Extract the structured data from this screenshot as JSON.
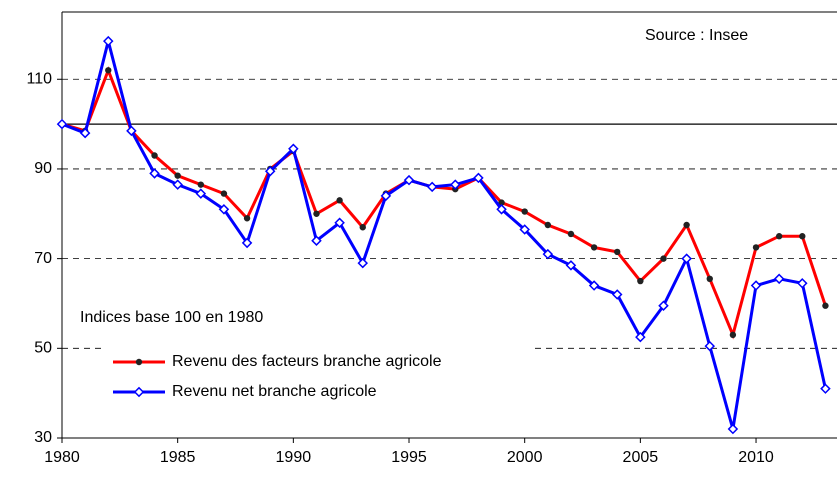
{
  "chart_data": {
    "type": "line",
    "annotations": [
      "Source : Insee",
      "Indices base 100 en 1980"
    ],
    "x": [
      1980,
      1981,
      1982,
      1983,
      1984,
      1985,
      1986,
      1987,
      1988,
      1989,
      1990,
      1991,
      1992,
      1993,
      1994,
      1995,
      1996,
      1997,
      1998,
      1999,
      2000,
      2001,
      2002,
      2003,
      2004,
      2005,
      2006,
      2007,
      2008,
      2009,
      2010,
      2011,
      2012,
      2013
    ],
    "series": [
      {
        "name": "Revenu des facteurs branche agricole",
        "color": "#ff0000",
        "marker": "circle",
        "values": [
          100,
          98.5,
          112,
          98.5,
          93,
          88.5,
          86.5,
          84.5,
          79,
          90,
          94,
          80,
          83,
          77,
          84.5,
          87.5,
          86,
          85.5,
          88,
          82.5,
          80.5,
          77.5,
          75.5,
          72.5,
          71.5,
          65,
          70,
          77.5,
          65.5,
          53,
          72.5,
          75,
          75,
          59.5
        ]
      },
      {
        "name": "Revenu net branche agricole",
        "color": "#0000ff",
        "marker": "diamond",
        "values": [
          100,
          98,
          118.5,
          98.5,
          89,
          86.5,
          84.5,
          81,
          73.5,
          89.5,
          94.5,
          74,
          78,
          69,
          84,
          87.5,
          86,
          86.5,
          88,
          81,
          76.5,
          71,
          68.5,
          64,
          62,
          52.5,
          59.5,
          70,
          50.5,
          32,
          64,
          65.5,
          64.5,
          41
        ]
      }
    ],
    "reference_line": 100,
    "xlim": [
      1980,
      2013.5
    ],
    "xticks": [
      1980,
      1985,
      1990,
      1995,
      2000,
      2005,
      2010
    ],
    "ylim": [
      30,
      125
    ],
    "yticks": [
      30,
      50,
      70,
      90,
      110
    ],
    "grid": true
  }
}
